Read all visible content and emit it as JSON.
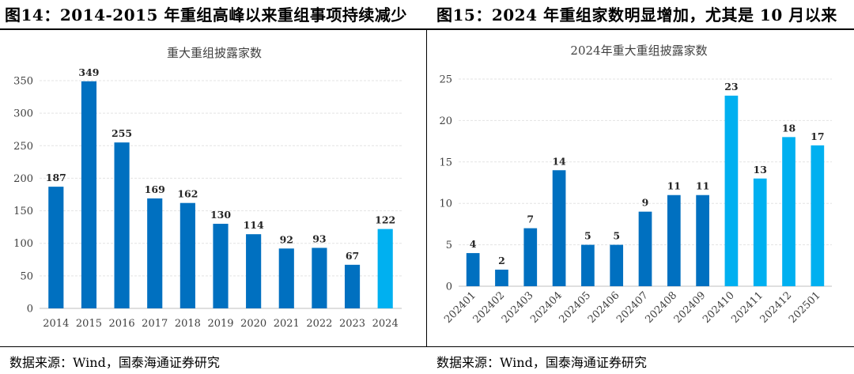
{
  "header": {
    "left_title": "图14：2014-2015 年重组高峰以来重组事项持续减少",
    "right_title": "图15：2024 年重组家数明显增加，尤其是 10 月以来"
  },
  "footer": {
    "left_source": "数据来源：Wind，国泰海通证券研究",
    "right_source": "数据来源：Wind，国泰海通证券研究"
  },
  "chart_data": [
    {
      "type": "bar",
      "title": "重大重组披露家数",
      "xlabel": "",
      "ylabel": "",
      "categories": [
        "2014",
        "2015",
        "2016",
        "2017",
        "2018",
        "2019",
        "2020",
        "2021",
        "2022",
        "2023",
        "2024"
      ],
      "values": [
        187,
        349,
        255,
        169,
        162,
        130,
        114,
        92,
        93,
        67,
        122
      ],
      "ylim": [
        0,
        350
      ],
      "yticks": [
        0,
        50,
        100,
        150,
        200,
        250,
        300,
        350
      ],
      "grid": true,
      "colors": [
        "#0070c0",
        "#0070c0",
        "#0070c0",
        "#0070c0",
        "#0070c0",
        "#0070c0",
        "#0070c0",
        "#0070c0",
        "#0070c0",
        "#0070c0",
        "#00b0f0"
      ]
    },
    {
      "type": "bar",
      "title": "2024年重大重组披露家数",
      "xlabel": "",
      "ylabel": "",
      "categories": [
        "202401",
        "202402",
        "202403",
        "202404",
        "202405",
        "202406",
        "202407",
        "202408",
        "202409",
        "202410",
        "202411",
        "202412",
        "202501"
      ],
      "values": [
        4,
        2,
        7,
        14,
        5,
        5,
        9,
        11,
        11,
        23,
        13,
        18,
        17
      ],
      "ylim": [
        0,
        25
      ],
      "yticks": [
        0,
        5,
        10,
        15,
        20,
        25
      ],
      "grid": true,
      "colors": [
        "#0070c0",
        "#0070c0",
        "#0070c0",
        "#0070c0",
        "#0070c0",
        "#0070c0",
        "#0070c0",
        "#0070c0",
        "#0070c0",
        "#00b0f0",
        "#00b0f0",
        "#00b0f0",
        "#00b0f0"
      ]
    }
  ]
}
